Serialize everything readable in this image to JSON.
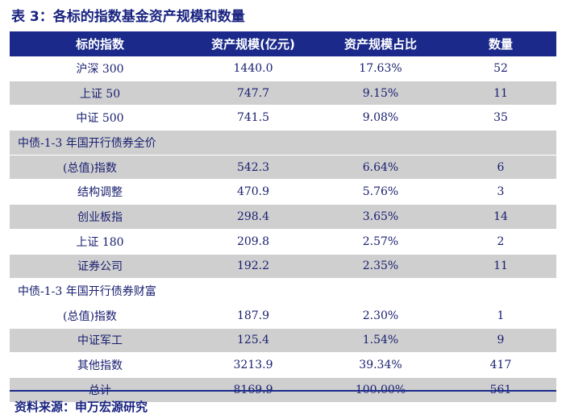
{
  "title": "表 3：各标的指数基金资产规模和数量",
  "headers": [
    "标的指数",
    "资产规模(亿元)",
    "资产规模占比",
    "数量"
  ],
  "rows": [
    {
      "name": "沪深 300",
      "size": "1440.0",
      "pct": "17.63%",
      "count": "52"
    },
    {
      "name": "上证 50",
      "size": "747.7",
      "pct": "9.15%",
      "count": "11"
    },
    {
      "name": "中证 500",
      "size": "741.5",
      "pct": "9.08%",
      "count": "35"
    },
    {
      "name": "中债-1-3 年国开行债券全价",
      "size": "",
      "pct": "",
      "count": ""
    },
    {
      "name": "(总值)指数",
      "size": "542.3",
      "pct": "6.64%",
      "count": "6"
    },
    {
      "name": "结构调整",
      "size": "470.9",
      "pct": "5.76%",
      "count": "3"
    },
    {
      "name": "创业板指",
      "size": "298.4",
      "pct": "3.65%",
      "count": "14"
    },
    {
      "name": "上证 180",
      "size": "209.8",
      "pct": "2.57%",
      "count": "2"
    },
    {
      "name": "证券公司",
      "size": "192.2",
      "pct": "2.35%",
      "count": "11"
    },
    {
      "name": "中债-1-3 年国开行债券财富",
      "size": "",
      "pct": "",
      "count": ""
    },
    {
      "name": "(总值)指数",
      "size": "187.9",
      "pct": "2.30%",
      "count": "1"
    },
    {
      "name": "中证军工",
      "size": "125.4",
      "pct": "1.54%",
      "count": "9"
    },
    {
      "name": "其他指数",
      "size": "3213.9",
      "pct": "39.34%",
      "count": "417"
    },
    {
      "name": "总计",
      "size": "8169.9",
      "pct": "100.00%",
      "count": "561"
    }
  ],
  "footer": "资料来源：申万宏源研究"
}
